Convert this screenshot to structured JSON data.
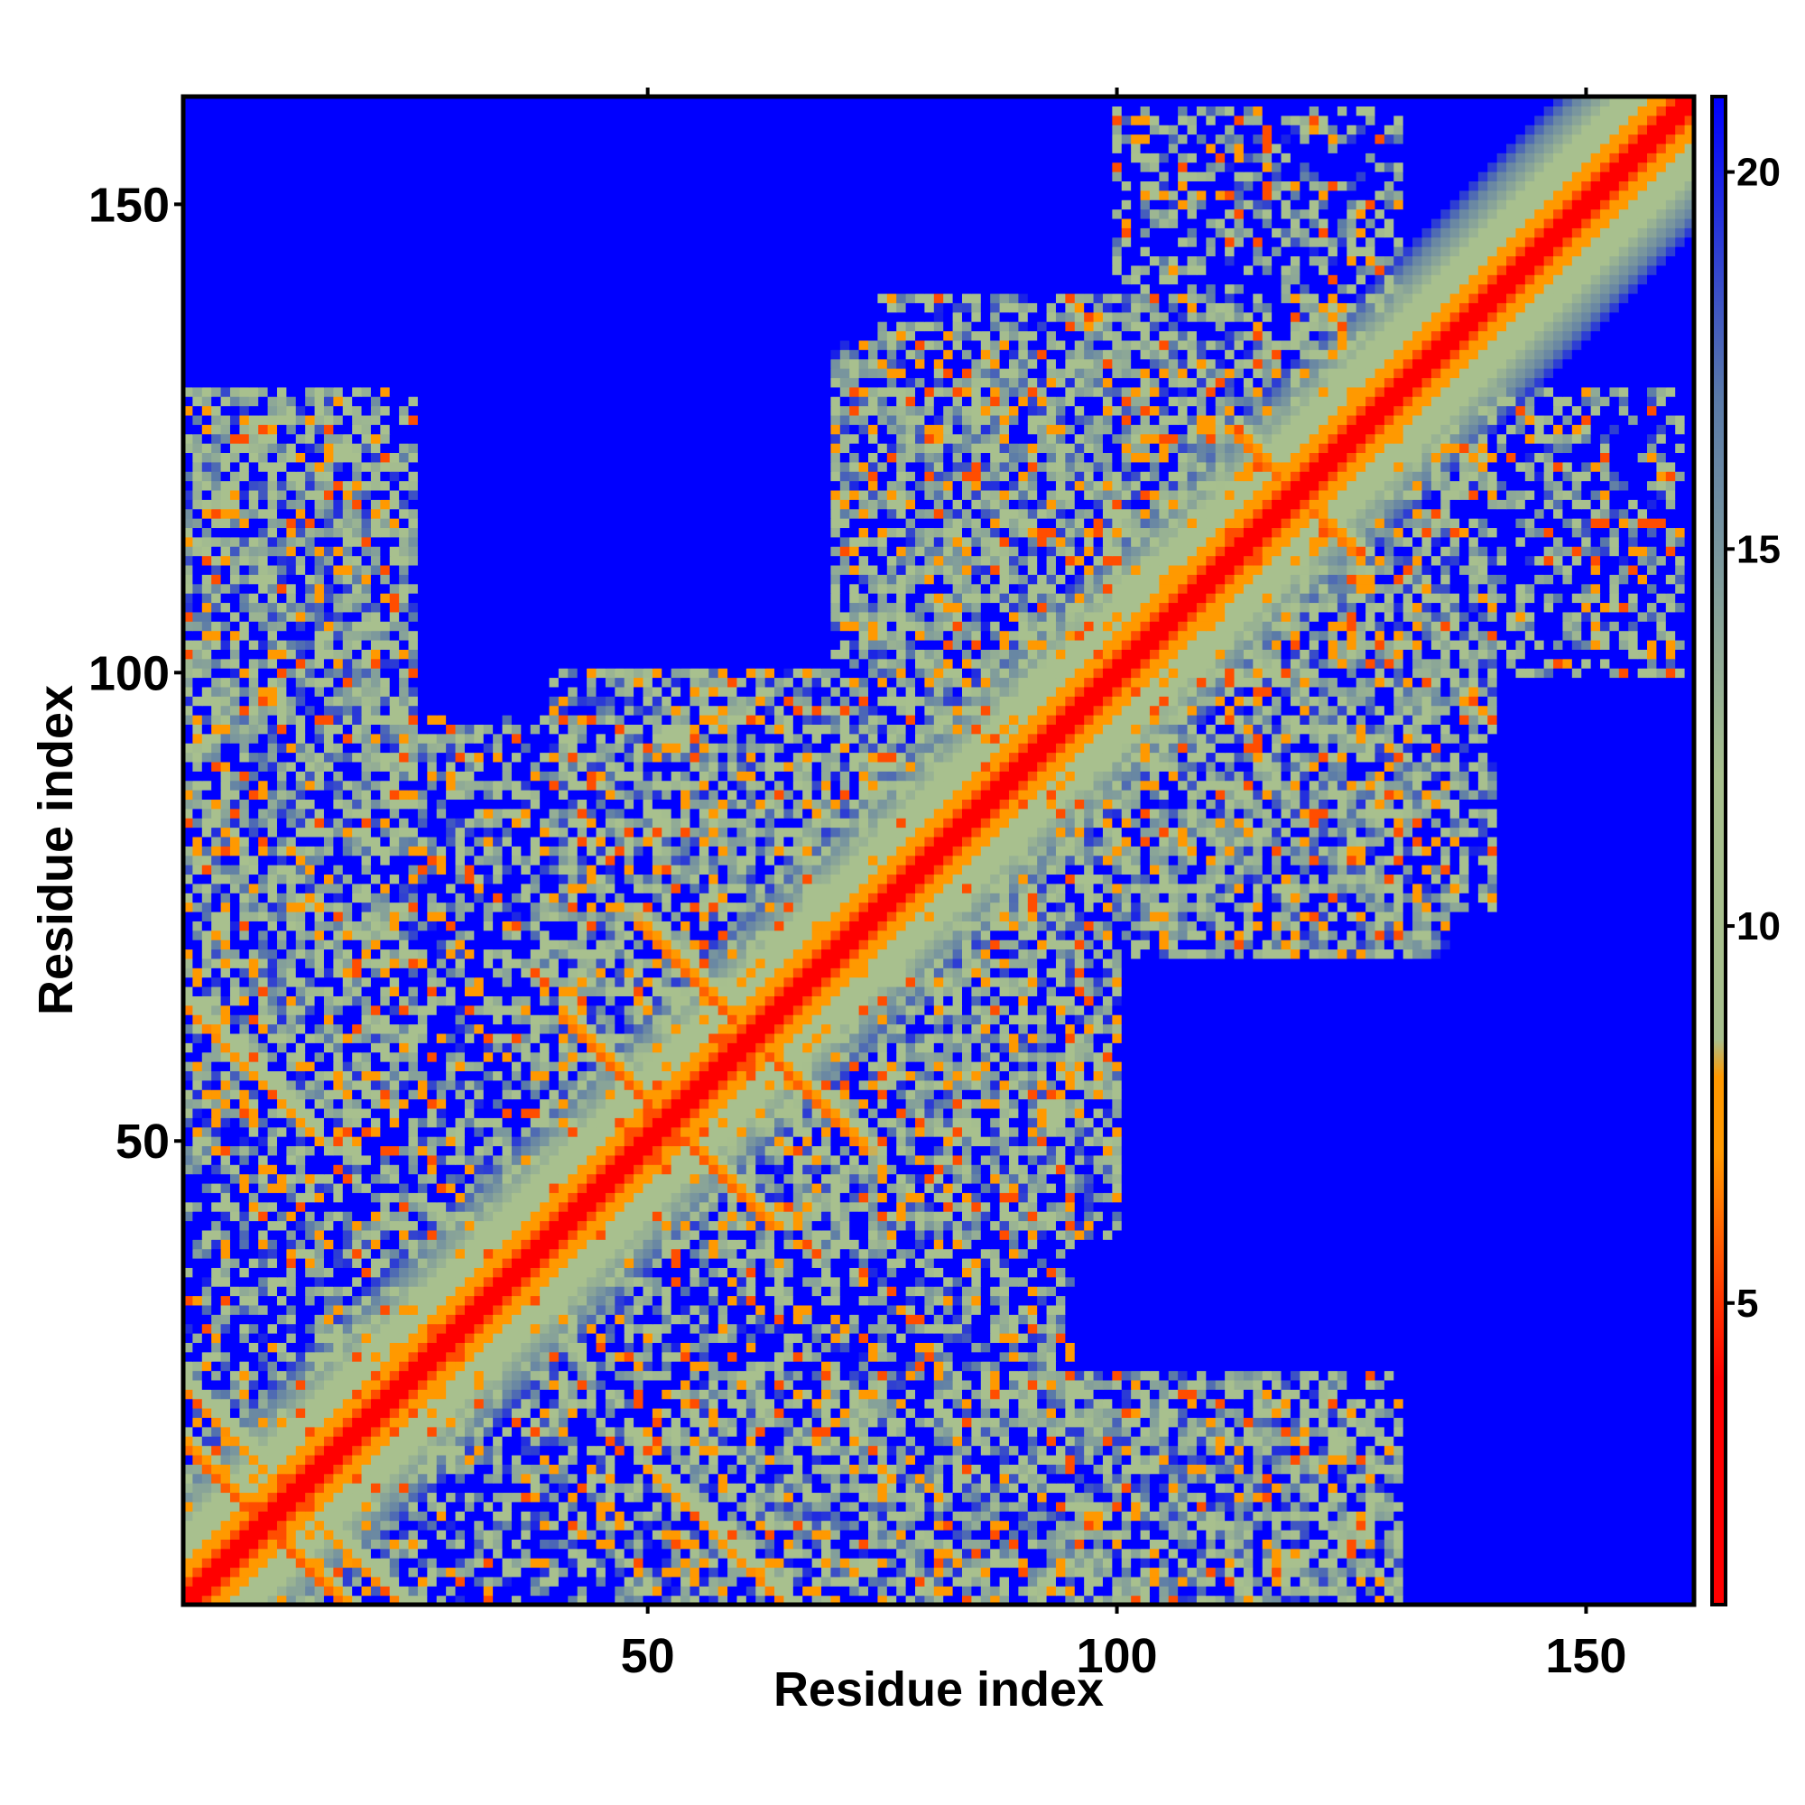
{
  "chart_data": {
    "type": "heatmap",
    "title": "",
    "xlabel": "Residue index",
    "ylabel": "Residue index",
    "xlim": [
      0.5,
      161.5
    ],
    "ylim": [
      0.5,
      161.5
    ],
    "x_ticks": [
      50,
      100,
      150
    ],
    "y_ticks": [
      50,
      100,
      150
    ],
    "x_tick_labels": [
      "50",
      "100",
      "150"
    ],
    "y_tick_labels": [
      "50",
      "100",
      "150"
    ],
    "n_residues": 161,
    "symmetric": true,
    "value_clip": [
      1,
      21
    ],
    "colorbar": {
      "range": [
        1,
        21
      ],
      "ticks": [
        5,
        10,
        15,
        20
      ],
      "tick_labels": [
        "5",
        "10",
        "15",
        "20"
      ],
      "colors": {
        "red": "#ff0000",
        "orange": "#ff9900",
        "sage": "#a8c08e",
        "steel": "#5a7aa8",
        "blue": "#0000ff"
      },
      "stops": [
        {
          "value": 1,
          "color": "red"
        },
        {
          "value": 4,
          "color": "red"
        },
        {
          "value": 7,
          "color": "orange"
        },
        {
          "value": 8.2,
          "color": "orange"
        },
        {
          "value": 8.3,
          "color": "sage"
        },
        {
          "value": 12,
          "color": "sage"
        },
        {
          "value": 17,
          "color": "steel"
        },
        {
          "value": 21,
          "color": "blue"
        }
      ]
    },
    "background_value": 21,
    "structure": {
      "diagonal_band": {
        "description": "distance rises with sequence separation",
        "values_by_offset": [
          1,
          3.8,
          5.5,
          7,
          8,
          9,
          10,
          11,
          12,
          13,
          14,
          15,
          16,
          17.5,
          19
        ]
      },
      "cross_features": [
        {
          "center": [
            8,
            8
          ],
          "length": 12,
          "min_value": 5.5
        },
        {
          "center": [
            51,
            51
          ],
          "length": 11,
          "min_value": 5.5
        },
        {
          "center": [
            60,
            60
          ],
          "length": 12,
          "min_value": 5.5
        },
        {
          "center": [
            118,
            118
          ],
          "length": 6,
          "min_value": 6
        },
        {
          "center": [
            0,
            63
          ],
          "length": 12,
          "min_value": 6.5
        },
        {
          "center": [
            0,
            22
          ],
          "length": 8,
          "min_value": 6.5
        },
        {
          "center": [
            63,
            0
          ],
          "length": 14,
          "min_value": 6.5
        }
      ],
      "contact_clouds": [
        {
          "x_range": [
            1,
            25
          ],
          "y_range": [
            55,
            125
          ],
          "level": 0.75
        },
        {
          "x_range": [
            1,
            95
          ],
          "y_range": [
            1,
            80
          ],
          "level": 0.55
        },
        {
          "x_range": [
            40,
            70
          ],
          "y_range": [
            45,
            100
          ],
          "level": 0.7
        },
        {
          "x_range": [
            55,
            95
          ],
          "y_range": [
            5,
            60
          ],
          "level": 0.55
        },
        {
          "x_range": [
            70,
            130
          ],
          "y_range": [
            90,
            135
          ],
          "level": 0.75
        },
        {
          "x_range": [
            95,
            140
          ],
          "y_range": [
            75,
            130
          ],
          "level": 0.7
        },
        {
          "x_range": [
            100,
            130
          ],
          "y_range": [
            125,
            160
          ],
          "level": 0.5
        },
        {
          "x_range": [
            90,
            130
          ],
          "y_range": [
            1,
            25
          ],
          "level": 0.65
        }
      ],
      "seed": 20240611
    }
  }
}
